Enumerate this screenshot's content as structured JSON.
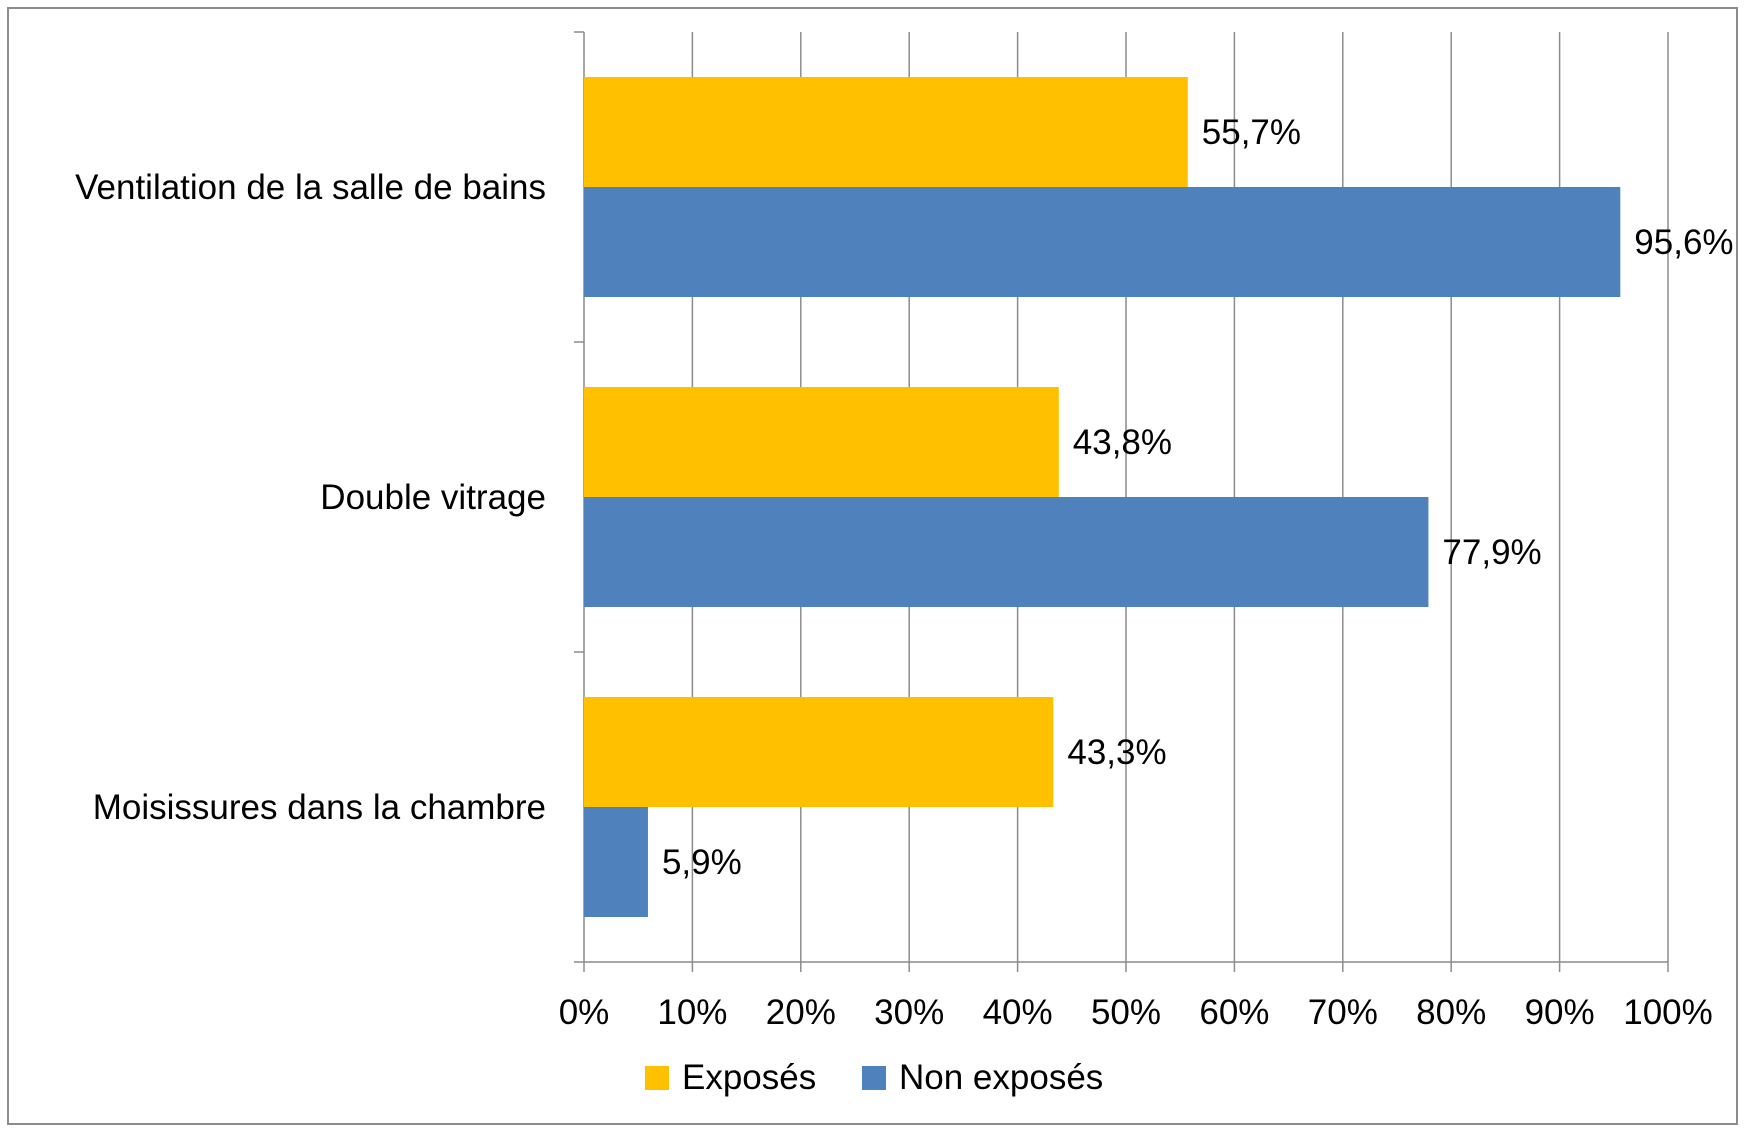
{
  "chart_data": {
    "type": "bar",
    "orientation": "horizontal",
    "categories": [
      "Ventilation de la salle de bains",
      "Double vitrage",
      "Moisissures dans la chambre"
    ],
    "series": [
      {
        "name": "Exposés",
        "color": "#FFC000",
        "values": [
          55.7,
          43.8,
          43.3
        ],
        "labels": [
          "55,7%",
          "43,8%",
          "43,3%"
        ]
      },
      {
        "name": "Non exposés",
        "color": "#4F81BD",
        "values": [
          95.6,
          77.9,
          5.9
        ],
        "labels": [
          "95,6%",
          "77,9%",
          "5,9%"
        ]
      }
    ],
    "xlim": [
      0,
      100
    ],
    "x_ticks": [
      "0%",
      "10%",
      "20%",
      "30%",
      "40%",
      "50%",
      "60%",
      "70%",
      "80%",
      "90%",
      "100%"
    ],
    "grid": true,
    "legend_position": "bottom",
    "title": "",
    "xlabel": "",
    "ylabel": ""
  }
}
